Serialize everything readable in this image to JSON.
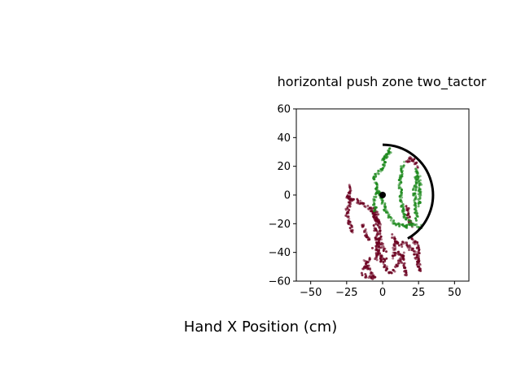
{
  "figure": {
    "xlabel": "Hand X Position (cm)"
  },
  "chart_data": {
    "type": "scatter",
    "title": "horizontal push zone two_tactor",
    "xlabel": "",
    "ylabel": "",
    "xlim": [
      -60,
      60
    ],
    "ylim": [
      -60,
      60
    ],
    "xticks": [
      -50,
      -25,
      0,
      25,
      50
    ],
    "yticks": [
      -60,
      -40,
      -20,
      0,
      20,
      40,
      60
    ],
    "grid": false,
    "colors": {
      "red": "#6b0020",
      "green": "#1e8a1e",
      "arc": "#000000"
    },
    "zone": {
      "center": [
        0,
        0
      ],
      "radius": 35,
      "arc_start_deg": 90,
      "arc_end_deg": -60
    },
    "origin_marker": [
      0,
      0
    ],
    "segments": [
      {
        "group": "red",
        "path": [
          [
            -22,
            6
          ],
          [
            -23,
            3
          ],
          [
            -24,
            0
          ],
          [
            -22,
            -3
          ],
          [
            -25,
            -12
          ],
          [
            -23,
            -20
          ],
          [
            -21,
            -27
          ]
        ]
      },
      {
        "group": "red",
        "path": [
          [
            -25,
            -2
          ],
          [
            -18,
            -4
          ],
          [
            -10,
            -8
          ],
          [
            -6,
            -14
          ],
          [
            -2,
            -20
          ]
        ]
      },
      {
        "group": "red",
        "path": [
          [
            -6,
            -8
          ],
          [
            -6,
            -15
          ],
          [
            -5,
            -22
          ],
          [
            -4,
            -30
          ],
          [
            -3,
            -38
          ],
          [
            -5,
            -46
          ]
        ]
      },
      {
        "group": "red",
        "path": [
          [
            -4,
            -12
          ],
          [
            -3,
            -20
          ],
          [
            -2,
            -28
          ],
          [
            -3,
            -36
          ]
        ]
      },
      {
        "group": "red",
        "path": [
          [
            -12,
            -45
          ],
          [
            -10,
            -50
          ],
          [
            -8,
            -55
          ],
          [
            -6,
            -58
          ]
        ]
      },
      {
        "group": "red",
        "path": [
          [
            -14,
            -55
          ],
          [
            -10,
            -57
          ],
          [
            -5,
            -58
          ]
        ]
      },
      {
        "group": "red",
        "path": [
          [
            -2,
            -44
          ],
          [
            2,
            -50
          ],
          [
            5,
            -54
          ],
          [
            8,
            -52
          ],
          [
            12,
            -46
          ],
          [
            15,
            -40
          ]
        ]
      },
      {
        "group": "red",
        "path": [
          [
            -6,
            -36
          ],
          [
            -3,
            -40
          ],
          [
            0,
            -44
          ],
          [
            3,
            -46
          ]
        ]
      },
      {
        "group": "red",
        "path": [
          [
            14,
            -32
          ],
          [
            18,
            -36
          ],
          [
            22,
            -40
          ],
          [
            25,
            -46
          ],
          [
            26,
            -54
          ]
        ]
      },
      {
        "group": "red",
        "path": [
          [
            20,
            -30
          ],
          [
            24,
            -34
          ],
          [
            25,
            -40
          ],
          [
            24,
            -50
          ]
        ]
      },
      {
        "group": "red",
        "path": [
          [
            10,
            -40
          ],
          [
            14,
            -44
          ],
          [
            15,
            -50
          ],
          [
            16,
            -57
          ]
        ]
      },
      {
        "group": "red",
        "path": [
          [
            17,
            23
          ],
          [
            19,
            26
          ],
          [
            21,
            25
          ],
          [
            23,
            22
          ],
          [
            24,
            19
          ]
        ]
      },
      {
        "group": "red",
        "path": [
          [
            7,
            -28
          ],
          [
            10,
            -33
          ],
          [
            13,
            -36
          ]
        ]
      },
      {
        "group": "red",
        "path": [
          [
            8,
            -44
          ],
          [
            8,
            -38
          ],
          [
            9,
            -32
          ]
        ]
      },
      {
        "group": "red",
        "path": [
          [
            -13,
            -52
          ],
          [
            -11,
            -48
          ],
          [
            -9,
            -44
          ]
        ]
      },
      {
        "group": "red",
        "path": [
          [
            -14,
            -20
          ],
          [
            -12,
            -26
          ],
          [
            -10,
            -32
          ]
        ]
      },
      {
        "group": "red",
        "path": [
          [
            -2,
            -30
          ],
          [
            0,
            -36
          ],
          [
            2,
            -40
          ]
        ]
      },
      {
        "group": "red",
        "path": [
          [
            17,
            -8
          ],
          [
            18,
            -16
          ],
          [
            20,
            -22
          ]
        ]
      },
      {
        "group": "green",
        "path": [
          [
            4,
            32
          ],
          [
            2,
            26
          ],
          [
            0,
            20
          ],
          [
            -3,
            16
          ],
          [
            -6,
            12
          ]
        ]
      },
      {
        "group": "green",
        "path": [
          [
            -6,
            12
          ],
          [
            -4,
            6
          ],
          [
            -2,
            0
          ],
          [
            1,
            -8
          ],
          [
            5,
            -16
          ],
          [
            8,
            -20
          ]
        ]
      },
      {
        "group": "green",
        "path": [
          [
            -4,
            6
          ],
          [
            -6,
            -4
          ],
          [
            -5,
            -12
          ]
        ]
      },
      {
        "group": "green",
        "path": [
          [
            14,
            22
          ],
          [
            13,
            14
          ],
          [
            12,
            6
          ],
          [
            13,
            -4
          ],
          [
            16,
            -16
          ]
        ]
      },
      {
        "group": "green",
        "path": [
          [
            16,
            -16
          ],
          [
            20,
            -20
          ],
          [
            24,
            -22
          ],
          [
            28,
            -22
          ]
        ]
      },
      {
        "group": "green",
        "path": [
          [
            8,
            -20
          ],
          [
            12,
            -21
          ],
          [
            16,
            -22
          ],
          [
            20,
            -21
          ]
        ]
      },
      {
        "group": "green",
        "path": [
          [
            24,
            18
          ],
          [
            23,
            10
          ],
          [
            22,
            2
          ],
          [
            23,
            -8
          ],
          [
            24,
            -18
          ]
        ]
      },
      {
        "group": "green",
        "path": [
          [
            25,
            14
          ],
          [
            26,
            8
          ],
          [
            26,
            0
          ],
          [
            25,
            -8
          ]
        ]
      },
      {
        "group": "green",
        "path": [
          [
            0,
            24
          ],
          [
            3,
            28
          ],
          [
            5,
            31
          ]
        ]
      }
    ]
  }
}
